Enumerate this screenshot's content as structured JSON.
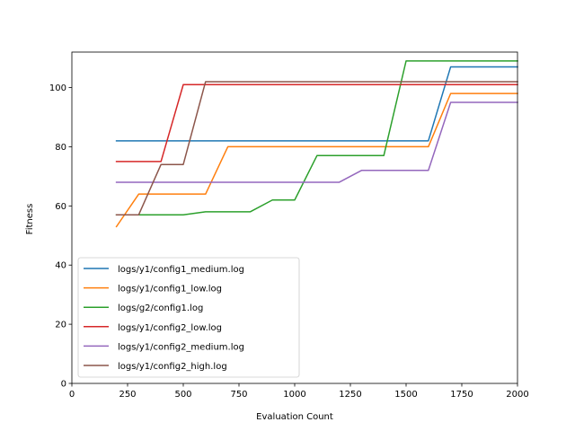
{
  "chart_data": {
    "type": "line",
    "title": "",
    "xlabel": "Evaluation Count",
    "ylabel": "Fitness",
    "xlim": [
      0,
      2000
    ],
    "ylim": [
      0,
      112
    ],
    "xticks": [
      0,
      250,
      500,
      750,
      1000,
      1250,
      1500,
      1750,
      2000
    ],
    "yticks": [
      0,
      20,
      40,
      60,
      80,
      100
    ],
    "grid": false,
    "legend_position": "lower-left",
    "series": [
      {
        "name": "logs/y1/config1_medium.log",
        "color": "#1f77b4",
        "points": [
          [
            200,
            82
          ],
          [
            1600,
            82
          ],
          [
            1700,
            107
          ],
          [
            2000,
            107
          ]
        ]
      },
      {
        "name": "logs/y1/config1_low.log",
        "color": "#ff7f0e",
        "points": [
          [
            200,
            53
          ],
          [
            300,
            64
          ],
          [
            600,
            64
          ],
          [
            700,
            80
          ],
          [
            1600,
            80
          ],
          [
            1700,
            98
          ],
          [
            2000,
            98
          ]
        ]
      },
      {
        "name": "logs/g2/config1.log",
        "color": "#2ca02c",
        "points": [
          [
            200,
            57
          ],
          [
            500,
            57
          ],
          [
            600,
            58
          ],
          [
            800,
            58
          ],
          [
            900,
            62
          ],
          [
            1000,
            62
          ],
          [
            1100,
            77
          ],
          [
            1400,
            77
          ],
          [
            1500,
            109
          ],
          [
            2000,
            109
          ]
        ]
      },
      {
        "name": "logs/y1/config2_low.log",
        "color": "#d62728",
        "points": [
          [
            200,
            75
          ],
          [
            400,
            75
          ],
          [
            500,
            101
          ],
          [
            2000,
            101
          ]
        ]
      },
      {
        "name": "logs/y1/config2_medium.log",
        "color": "#9467bd",
        "points": [
          [
            200,
            68
          ],
          [
            1200,
            68
          ],
          [
            1300,
            72
          ],
          [
            1600,
            72
          ],
          [
            1700,
            95
          ],
          [
            2000,
            95
          ]
        ]
      },
      {
        "name": "logs/y1/config2_high.log",
        "color": "#8c564b",
        "points": [
          [
            200,
            57
          ],
          [
            300,
            57
          ],
          [
            400,
            74
          ],
          [
            500,
            74
          ],
          [
            600,
            102
          ],
          [
            2000,
            102
          ]
        ]
      }
    ]
  }
}
